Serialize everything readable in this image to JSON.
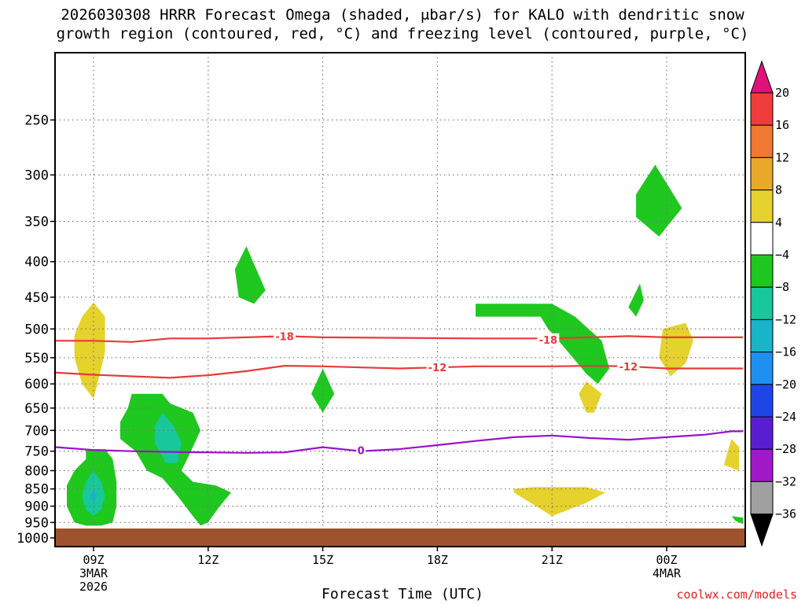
{
  "title": {
    "line1": "2026030308 HRRR Forecast Omega (shaded, μbar/s) for KALO with dendritic snow",
    "line2": "growth region (contoured, red, °C) and freezing level (contoured, purple, °C)"
  },
  "credit": "coolwx.com/models",
  "chart_data": {
    "type": "heatmap",
    "xlabel": "Forecast Time (UTC)",
    "ylabel": "",
    "x_ticks": [
      {
        "hour": 0,
        "label": [
          "09Z",
          "3MAR",
          "2026"
        ]
      },
      {
        "hour": 3,
        "label": [
          "12Z"
        ]
      },
      {
        "hour": 6,
        "label": [
          "15Z"
        ]
      },
      {
        "hour": 9,
        "label": [
          "18Z"
        ]
      },
      {
        "hour": 12,
        "label": [
          "21Z"
        ]
      },
      {
        "hour": 15,
        "label": [
          "00Z",
          "4MAR"
        ]
      }
    ],
    "xlim_hours": [
      -1,
      17
    ],
    "y_ticks": [
      250,
      300,
      350,
      400,
      450,
      500,
      550,
      600,
      650,
      700,
      750,
      800,
      850,
      900,
      950,
      1000
    ],
    "ylim_mb": [
      200,
      1000
    ],
    "y_scale": "log",
    "grid": true,
    "colorbar": {
      "levels": [
        20,
        16,
        12,
        8,
        4,
        -4,
        -8,
        -12,
        -16,
        -20,
        -24,
        -28,
        -32,
        -36
      ],
      "labels": [
        "20",
        "16",
        "12",
        "8",
        "4",
        "−4",
        "−8",
        "−12",
        "−16",
        "−20",
        "−24",
        "−28",
        "−32",
        "−36"
      ],
      "colors": [
        "#e0127a",
        "#f03c3c",
        "#f07830",
        "#e8a82a",
        "#e6d22c",
        "#ffffff",
        "#1ec81e",
        "#18c89a",
        "#18b4c8",
        "#1e90f0",
        "#1e46e6",
        "#5a1ed2",
        "#a018c8",
        "#a0a0a0",
        "#000000"
      ]
    },
    "contours": [
      {
        "value": -18,
        "label": "-18",
        "color": "#e83a3a",
        "points": [
          [
            -1.7,
            520
          ],
          [
            0,
            520
          ],
          [
            1,
            522
          ],
          [
            2,
            516
          ],
          [
            3,
            516
          ],
          [
            4,
            514
          ],
          [
            5,
            512
          ],
          [
            6,
            514
          ],
          [
            8,
            515
          ],
          [
            10,
            516
          ],
          [
            12,
            516
          ],
          [
            13,
            514
          ],
          [
            14,
            512
          ],
          [
            15,
            514
          ],
          [
            17,
            514
          ]
        ],
        "label_at": [
          [
            5.0,
            512
          ],
          [
            11.9,
            518
          ]
        ]
      },
      {
        "value": -12,
        "label": "-12",
        "color": "#e83a3a",
        "points": [
          [
            -1.7,
            575
          ],
          [
            0,
            582
          ],
          [
            1,
            585
          ],
          [
            2,
            588
          ],
          [
            3,
            583
          ],
          [
            4,
            575
          ],
          [
            5,
            565
          ],
          [
            6,
            566
          ],
          [
            7,
            568
          ],
          [
            8,
            570
          ],
          [
            9,
            568
          ],
          [
            10,
            566
          ],
          [
            11,
            566
          ],
          [
            12,
            566
          ],
          [
            13,
            565
          ],
          [
            14,
            566
          ],
          [
            15,
            570
          ],
          [
            17,
            570
          ]
        ],
        "label_at": [
          [
            9.0,
            568
          ],
          [
            14.0,
            566
          ]
        ]
      },
      {
        "value": 0,
        "label": "0",
        "color": "#9a10c8",
        "points": [
          [
            -1.7,
            735
          ],
          [
            0,
            747
          ],
          [
            1,
            750
          ],
          [
            2,
            752
          ],
          [
            3,
            753
          ],
          [
            4,
            754
          ],
          [
            5,
            753
          ],
          [
            6,
            740
          ],
          [
            7,
            750
          ],
          [
            8,
            745
          ],
          [
            9,
            735
          ],
          [
            10,
            725
          ],
          [
            11,
            716
          ],
          [
            12,
            712
          ],
          [
            13,
            718
          ],
          [
            14,
            722
          ],
          [
            15,
            716
          ],
          [
            16,
            710
          ],
          [
            16.7,
            702
          ],
          [
            17,
            702
          ]
        ],
        "label_at": [
          [
            7.0,
            748
          ]
        ]
      }
    ],
    "shaded_regions": [
      {
        "value": 6,
        "points": [
          [
            0,
            458
          ],
          [
            0.3,
            480
          ],
          [
            0.3,
            540
          ],
          [
            0.1,
            600
          ],
          [
            0,
            630
          ],
          [
            -0.3,
            600
          ],
          [
            -0.5,
            550
          ],
          [
            -0.5,
            510
          ],
          [
            -0.3,
            480
          ]
        ]
      },
      {
        "value": -6,
        "points": [
          [
            -0.2,
            745
          ],
          [
            0.3,
            745
          ],
          [
            0.5,
            770
          ],
          [
            0.6,
            830
          ],
          [
            0.6,
            900
          ],
          [
            0.5,
            950
          ],
          [
            0.2,
            960
          ],
          [
            -0.2,
            960
          ],
          [
            -0.5,
            950
          ],
          [
            -0.7,
            900
          ],
          [
            -0.7,
            840
          ],
          [
            -0.5,
            800
          ],
          [
            -0.2,
            770
          ]
        ]
      },
      {
        "value": -10,
        "points": [
          [
            0,
            800
          ],
          [
            0.2,
            830
          ],
          [
            0.3,
            870
          ],
          [
            0.2,
            910
          ],
          [
            0,
            930
          ],
          [
            -0.2,
            910
          ],
          [
            -0.3,
            870
          ],
          [
            -0.2,
            830
          ]
        ]
      },
      {
        "value": -14,
        "points": [
          [
            0,
            850
          ],
          [
            0.1,
            870
          ],
          [
            0,
            890
          ],
          [
            -0.1,
            870
          ]
        ]
      },
      {
        "value": -6,
        "points": [
          [
            1,
            620
          ],
          [
            1.8,
            620
          ],
          [
            2,
            640
          ],
          [
            2.6,
            660
          ],
          [
            2.8,
            700
          ],
          [
            2.5,
            760
          ],
          [
            2.3,
            800
          ],
          [
            2.6,
            830
          ],
          [
            3.2,
            840
          ],
          [
            3.6,
            860
          ],
          [
            3.3,
            900
          ],
          [
            3,
            950
          ],
          [
            2.8,
            960
          ],
          [
            2.6,
            930
          ],
          [
            2.2,
            870
          ],
          [
            1.8,
            820
          ],
          [
            1.4,
            800
          ],
          [
            1.1,
            750
          ],
          [
            0.7,
            720
          ],
          [
            0.7,
            680
          ],
          [
            0.9,
            650
          ]
        ]
      },
      {
        "value": -10,
        "points": [
          [
            1.8,
            660
          ],
          [
            2.1,
            690
          ],
          [
            2.3,
            730
          ],
          [
            2.2,
            780
          ],
          [
            1.9,
            780
          ],
          [
            1.6,
            730
          ],
          [
            1.6,
            690
          ]
        ]
      },
      {
        "value": -6,
        "points": [
          [
            4,
            380
          ],
          [
            4.5,
            440
          ],
          [
            4.2,
            460
          ],
          [
            3.8,
            450
          ],
          [
            3.7,
            410
          ]
        ]
      },
      {
        "value": -6,
        "points": [
          [
            6,
            570
          ],
          [
            6.3,
            620
          ],
          [
            6,
            660
          ],
          [
            5.7,
            620
          ]
        ]
      },
      {
        "value": 6,
        "points": [
          [
            12.9,
            595
          ],
          [
            13.3,
            620
          ],
          [
            13.1,
            660
          ],
          [
            12.9,
            660
          ],
          [
            12.7,
            620
          ]
        ]
      },
      {
        "value": -6,
        "points": [
          [
            10,
            460
          ],
          [
            12,
            460
          ],
          [
            12.6,
            480
          ],
          [
            13.3,
            520
          ],
          [
            13.5,
            570
          ],
          [
            13.2,
            600
          ],
          [
            12.9,
            580
          ],
          [
            12.3,
            530
          ],
          [
            11.9,
            500
          ],
          [
            11.7,
            480
          ],
          [
            10,
            480
          ]
        ]
      },
      {
        "value": 6,
        "points": [
          [
            11,
            850
          ],
          [
            11.5,
            845
          ],
          [
            12.9,
            845
          ],
          [
            13.4,
            860
          ],
          [
            12.9,
            890
          ],
          [
            12,
            930
          ],
          [
            11,
            860
          ]
        ]
      },
      {
        "value": -6,
        "points": [
          [
            14.7,
            290
          ],
          [
            15.4,
            335
          ],
          [
            14.8,
            368
          ],
          [
            14.2,
            345
          ],
          [
            14.2,
            320
          ]
        ]
      },
      {
        "value": -6,
        "points": [
          [
            14.3,
            430
          ],
          [
            14.4,
            455
          ],
          [
            14.2,
            480
          ],
          [
            14,
            465
          ]
        ]
      },
      {
        "value": 6,
        "points": [
          [
            15.5,
            490
          ],
          [
            15.7,
            520
          ],
          [
            15.5,
            560
          ],
          [
            15.1,
            585
          ],
          [
            14.8,
            550
          ],
          [
            14.9,
            500
          ]
        ]
      },
      {
        "value": 6,
        "points": [
          [
            16.7,
            720
          ],
          [
            16.9,
            740
          ],
          [
            16.9,
            800
          ],
          [
            16.5,
            785
          ],
          [
            16.6,
            750
          ]
        ]
      },
      {
        "value": -6,
        "points": [
          [
            16.7,
            930
          ],
          [
            17,
            935
          ],
          [
            17,
            955
          ],
          [
            16.8,
            945
          ]
        ]
      }
    ]
  }
}
